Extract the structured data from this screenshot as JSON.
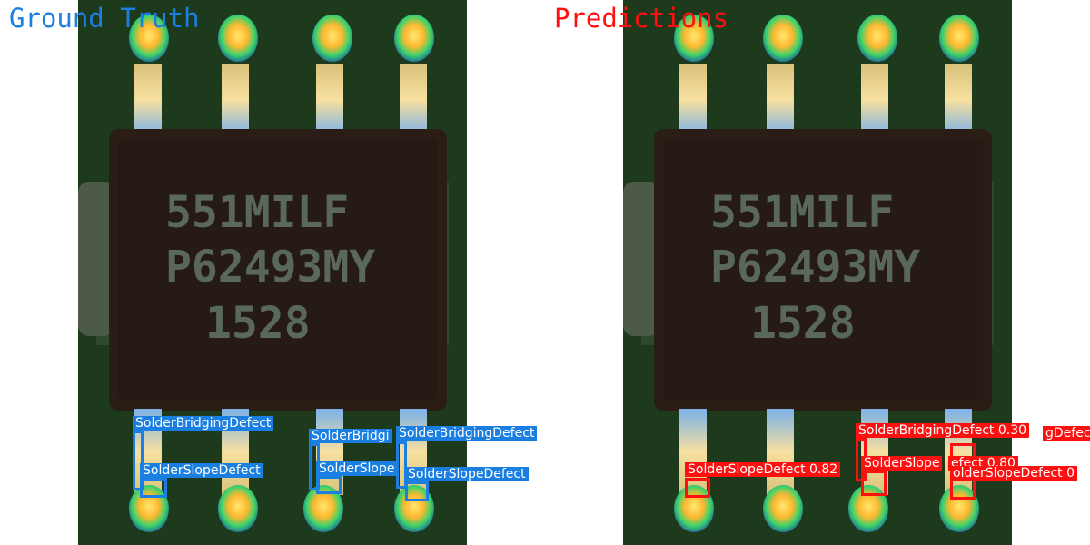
{
  "panels": {
    "ground_truth": {
      "title": "Ground Truth",
      "color": "#1a7fe0",
      "annotations": [
        {
          "label": "SolderBridgingDefect"
        },
        {
          "label": "SolderSlopeDefect"
        },
        {
          "label": "SolderBridgi"
        },
        {
          "label": "SolderSlope"
        },
        {
          "label": "SolderBridgingDefect"
        },
        {
          "label": "SolderSlopeDefect"
        }
      ]
    },
    "predictions": {
      "title": "Predictions",
      "color": "#ff1010",
      "annotations": [
        {
          "label": "SolderBridgingDefect 0.30"
        },
        {
          "label": "SolderSlopeDefect 0.82"
        },
        {
          "label": "SolderSlope"
        },
        {
          "label": "efect 0.80"
        },
        {
          "label": "olderSlopeDefect 0"
        },
        {
          "label": "gDefec"
        }
      ]
    }
  },
  "chip": {
    "marking_line1": "551MILF",
    "marking_line2": "P62493MY",
    "marking_line3": "1528"
  },
  "colors": {
    "board": "#1e3a1c",
    "chip_body": "#2a1d16",
    "marking": "#59685a"
  }
}
